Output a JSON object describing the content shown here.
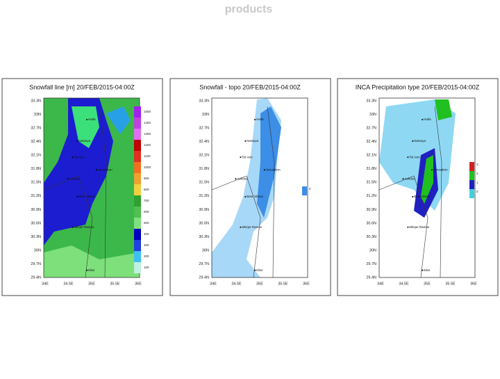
{
  "title": "products",
  "lat_labels": [
    "33.3N",
    "33N",
    "32.7N",
    "32.4N",
    "32.1N",
    "31.8N",
    "31.5N",
    "31.2N",
    "30.9N",
    "30.6N",
    "30.3N",
    "30N",
    "29.7N",
    "29.4N"
  ],
  "lon_labels": [
    "34E",
    "34.5E",
    "35E",
    "35.5E",
    "36E"
  ],
  "cities": [
    "Haifa",
    "Netanya",
    "Tel Aviv",
    "Jerusalem",
    "Ashdod",
    "Beer Sheva",
    "Mitzpe Ramon",
    "Eilat"
  ],
  "panels": [
    {
      "title": "Snowfall line [m] 20/FEB/2015-04:00Z",
      "legend": {
        "labels": [
          "1500",
          "1400",
          "1300",
          "1200",
          "1100",
          "1000",
          "900",
          "800",
          "700",
          "600",
          "500",
          "400",
          "300",
          "200",
          "100"
        ],
        "colors": [
          "#a020f0",
          "#c040e0",
          "#e070f0",
          "#c00000",
          "#e03020",
          "#f07020",
          "#f0a030",
          "#f0d040",
          "#30a030",
          "#50c050",
          "#80e080",
          "#0000c0",
          "#2040e0",
          "#40c0f0",
          "#c0f0e0"
        ]
      }
    },
    {
      "title": "Snowfall - topo 20/FEB/2015-04:00Z",
      "legend": {
        "labels": [
          "0"
        ],
        "colors": [
          "#3c8ee6"
        ]
      }
    },
    {
      "title": "INCA Precipitation type 20/FEB/2015-04:00Z",
      "legend": {
        "labels": [
          "3",
          "2",
          "1",
          "0"
        ],
        "colors": [
          "#d02020",
          "#20c020",
          "#2020c0",
          "#40d0e0"
        ]
      }
    }
  ]
}
